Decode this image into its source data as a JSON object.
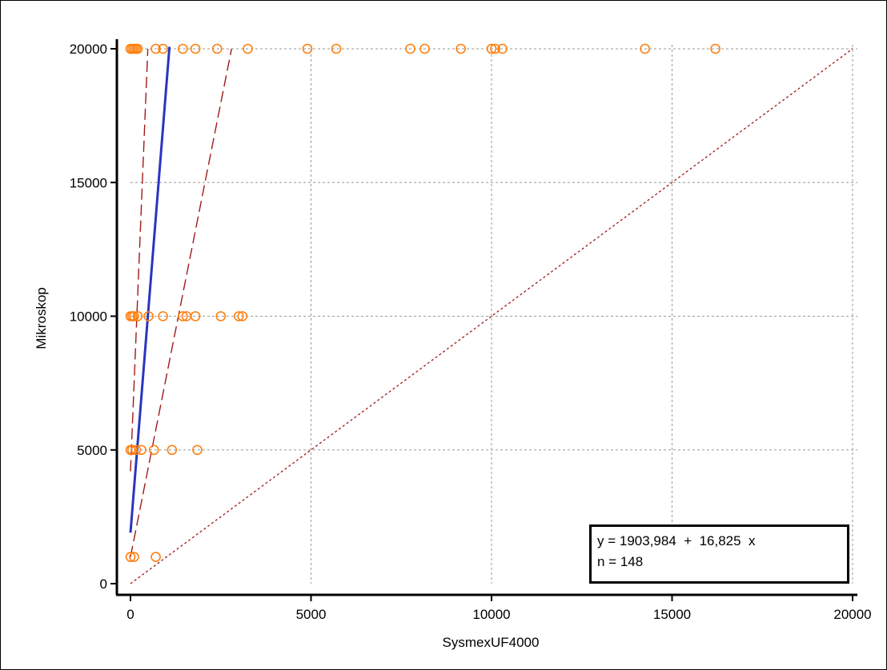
{
  "chart_data": {
    "type": "scatter",
    "title": "",
    "xlabel": "SysmexUF4000",
    "ylabel": "Mikroskop",
    "xlim": [
      0,
      20000
    ],
    "ylim": [
      0,
      20000
    ],
    "x_ticks": [
      "0",
      "5000",
      "10000",
      "15000",
      "20000"
    ],
    "y_ticks": [
      "0",
      "5000",
      "10000",
      "15000",
      "20000"
    ],
    "grid": true,
    "colors": {
      "points": "#ff7f0e",
      "regression": "#2b35c0",
      "confidence": "#a01919",
      "identity": "#a01919"
    },
    "points": [
      [
        0,
        20000
      ],
      [
        50,
        20000
      ],
      [
        100,
        20000
      ],
      [
        150,
        20000
      ],
      [
        200,
        20000
      ],
      [
        700,
        20000
      ],
      [
        900,
        20000
      ],
      [
        1450,
        20000
      ],
      [
        1800,
        20000
      ],
      [
        2400,
        20000
      ],
      [
        3250,
        20000
      ],
      [
        4900,
        20000
      ],
      [
        5700,
        20000
      ],
      [
        7750,
        20000
      ],
      [
        8150,
        20000
      ],
      [
        9150,
        20000
      ],
      [
        10000,
        20000
      ],
      [
        10100,
        20000
      ],
      [
        10300,
        20000
      ],
      [
        14250,
        20000
      ],
      [
        16200,
        20000
      ],
      [
        0,
        10000
      ],
      [
        50,
        10000
      ],
      [
        100,
        10000
      ],
      [
        200,
        10000
      ],
      [
        500,
        10000
      ],
      [
        900,
        10000
      ],
      [
        1450,
        10000
      ],
      [
        1550,
        10000
      ],
      [
        1800,
        10000
      ],
      [
        2500,
        10000
      ],
      [
        3000,
        10000
      ],
      [
        3100,
        10000
      ],
      [
        0,
        5000
      ],
      [
        50,
        5000
      ],
      [
        150,
        5000
      ],
      [
        300,
        5000
      ],
      [
        650,
        5000
      ],
      [
        1150,
        5000
      ],
      [
        1850,
        5000
      ],
      [
        0,
        1000
      ],
      [
        100,
        1000
      ],
      [
        700,
        1000
      ]
    ],
    "regression_line": {
      "intercept": 1903.984,
      "slope": 16.825,
      "x_range": [
        0,
        1080
      ]
    },
    "confidence_band": {
      "lower": {
        "from": [
          0,
          1000
        ],
        "to": [
          2800,
          20000
        ]
      },
      "upper": {
        "from": [
          0,
          4200
        ],
        "to": [
          480,
          20000
        ]
      }
    },
    "identity_line": {
      "from": [
        0,
        0
      ],
      "to": [
        20000,
        20000
      ]
    },
    "annotations": {
      "equation": "y = 1903,984  +  16,825  x",
      "n": "n = 148"
    }
  }
}
